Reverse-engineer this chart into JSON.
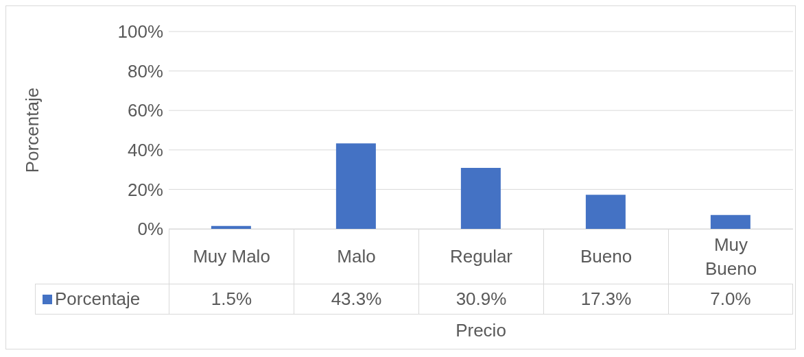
{
  "chart_data": {
    "type": "bar",
    "xlabel": "Precio",
    "ylabel": "Porcentaje",
    "categories": [
      "Muy Malo",
      "Malo",
      "Regular",
      "Bueno",
      "Muy Bueno"
    ],
    "series": [
      {
        "name": "Porcentaje",
        "color": "#4472c4",
        "values": [
          1.5,
          43.3,
          30.9,
          17.3,
          7.0
        ],
        "value_labels": [
          "1.5%",
          "43.3%",
          "30.9%",
          "17.3%",
          "7.0%"
        ]
      }
    ],
    "ylim": [
      0,
      100
    ],
    "yticks": [
      {
        "value": 0,
        "label": "0%"
      },
      {
        "value": 20,
        "label": "20%"
      },
      {
        "value": 40,
        "label": "40%"
      },
      {
        "value": 60,
        "label": "60%"
      },
      {
        "value": 80,
        "label": "80%"
      },
      {
        "value": 100,
        "label": "100%"
      }
    ],
    "grid": "y",
    "legend": "bottom"
  }
}
